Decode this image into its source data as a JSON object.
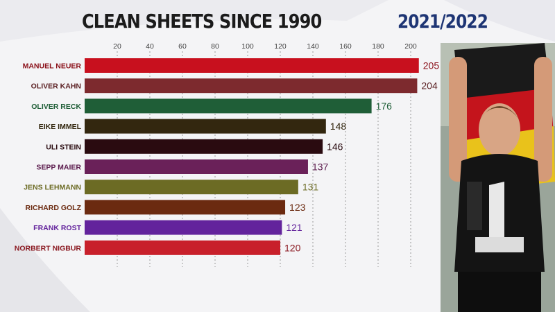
{
  "header": {
    "title": "CLEAN SHEETS SINCE 1990",
    "season": "2021/2022"
  },
  "photo": {
    "description_icon": "goalkeeper-celebrating-photo"
  },
  "chart_data": {
    "type": "bar",
    "orientation": "horizontal",
    "title": "CLEAN SHEETS SINCE 1990",
    "subtitle": "2021/2022",
    "xlabel": "",
    "ylabel": "",
    "xlim": [
      0,
      215
    ],
    "xticks": [
      20,
      40,
      60,
      80,
      100,
      120,
      140,
      160,
      180,
      200
    ],
    "grid": true,
    "categories": [
      "MANUEL NEUER",
      "OLIVER KAHN",
      "OLIVER RECK",
      "EIKE IMMEL",
      "ULI STEIN",
      "SEPP MAIER",
      "JENS LEHMANN",
      "RICHARD GOLZ",
      "FRANK ROST",
      "NORBERT NIGBUR"
    ],
    "values": [
      205,
      204,
      176,
      148,
      146,
      137,
      131,
      123,
      121,
      120
    ],
    "colors": [
      "#c8101e",
      "#7d2a2e",
      "#1f5e37",
      "#33270f",
      "#2a0b10",
      "#6a2159",
      "#6c6b24",
      "#6b2a10",
      "#63239c",
      "#c8202b"
    ],
    "label_colors": [
      "#8a0f18",
      "#5a1f22",
      "#1f5e37",
      "#33270f",
      "#2a0b10",
      "#5a1a4c",
      "#6c6b24",
      "#6b2a10",
      "#63239c",
      "#8a1820"
    ]
  }
}
